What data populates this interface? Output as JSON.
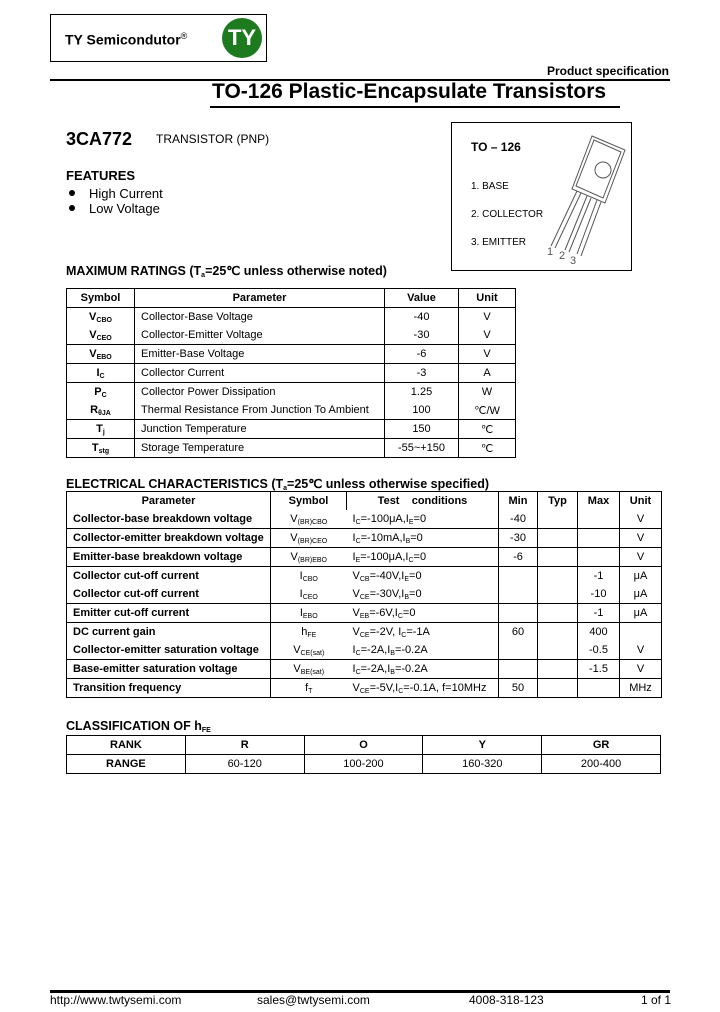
{
  "header": {
    "company": "TY Semicondutor",
    "registered": "®",
    "logo_letters": "TY",
    "logo_color": "#1e7a1e",
    "product_spec": "Product specification",
    "title": "TO-126 Plastic-Encapsulate Transistors"
  },
  "part": {
    "number": "3CA772",
    "type": "TRANSISTOR (PNP)"
  },
  "package": {
    "name": "TO – 126",
    "pins": [
      "1. BASE",
      "2. COLLECTOR",
      "3. EMITTER"
    ],
    "pin_numbers": [
      "1",
      "2",
      "3"
    ]
  },
  "features": {
    "title": "FEATURES",
    "items": [
      "High Current",
      "Low Voltage"
    ]
  },
  "max_ratings": {
    "heading": [
      "MAXIMUM RATINGS (T",
      {
        "sub": "a"
      },
      "=25℃ unless otherwise noted)"
    ],
    "columns": [
      "Symbol",
      "Parameter",
      "Value",
      "Unit"
    ],
    "rows": [
      {
        "symbol": [
          "V",
          {
            "sub": "CBO"
          }
        ],
        "parameter": "Collector-Base Voltage",
        "value": "-40",
        "unit": "V",
        "sep": false
      },
      {
        "symbol": [
          "V",
          {
            "sub": "CEO"
          }
        ],
        "parameter": "Collector-Emitter Voltage",
        "value": "-30",
        "unit": "V",
        "sep": true
      },
      {
        "symbol": [
          "V",
          {
            "sub": "EBO"
          }
        ],
        "parameter": "Emitter-Base Voltage",
        "value": "-6",
        "unit": "V",
        "sep": true
      },
      {
        "symbol": [
          "I",
          {
            "sub": "C"
          }
        ],
        "parameter": "Collector Current",
        "value": "-3",
        "unit": "A",
        "sep": true
      },
      {
        "symbol": [
          "P",
          {
            "sub": "C"
          }
        ],
        "parameter": "Collector Power Dissipation",
        "value": "1.25",
        "unit": "W",
        "sep": false
      },
      {
        "symbol": [
          "R",
          {
            "sub": "θJA"
          }
        ],
        "parameter": "Thermal Resistance From Junction To Ambient",
        "value": "100",
        "unit": "℃/W",
        "sep": true
      },
      {
        "symbol": [
          "T",
          {
            "sub": "j"
          }
        ],
        "parameter": "Junction Temperature",
        "value": "150",
        "unit": "℃",
        "sep": true
      },
      {
        "symbol": [
          "T",
          {
            "sub": "stg"
          }
        ],
        "parameter": "Storage Temperature",
        "value": "-55~+150",
        "unit": "℃",
        "sep": true
      }
    ]
  },
  "electrical": {
    "heading": [
      "ELECTRICAL CHARACTERISTICS (T",
      {
        "sub": "a"
      },
      "=25℃ unless otherwise specified)"
    ],
    "columns": [
      "Parameter",
      "Symbol",
      "Test    conditions",
      "Min",
      "Typ",
      "Max",
      "Unit"
    ],
    "rows": [
      {
        "parameter": "Collector-base breakdown voltage",
        "symbol": [
          "V",
          {
            "sub": "(BR)CBO"
          }
        ],
        "conditions": [
          "I",
          {
            "sub": "C"
          },
          "=-100μA,I",
          {
            "sub": "E"
          },
          "=0"
        ],
        "min": "-40",
        "typ": "",
        "max": "",
        "unit": "V",
        "sep": true
      },
      {
        "parameter": "Collector-emitter breakdown voltage",
        "symbol": [
          "V",
          {
            "sub": "(BR)CEO"
          }
        ],
        "conditions": [
          "I",
          {
            "sub": "C"
          },
          "=-10mA,I",
          {
            "sub": "B"
          },
          "=0"
        ],
        "min": "-30",
        "typ": "",
        "max": "",
        "unit": "V",
        "sep": true
      },
      {
        "parameter": "Emitter-base breakdown voltage",
        "symbol": [
          "V",
          {
            "sub": "(BR)EBO"
          }
        ],
        "conditions": [
          "I",
          {
            "sub": "E"
          },
          "=-100μA,I",
          {
            "sub": "C"
          },
          "=0"
        ],
        "min": "-6",
        "typ": "",
        "max": "",
        "unit": "V",
        "sep": true
      },
      {
        "parameter": "Collector cut-off current",
        "symbol": [
          "I",
          {
            "sub": "CBO"
          }
        ],
        "conditions": [
          "V",
          {
            "sub": "CB"
          },
          "=-40V,I",
          {
            "sub": "E"
          },
          "=0"
        ],
        "min": "",
        "typ": "",
        "max": "-1",
        "unit": "μA",
        "sep": false
      },
      {
        "parameter": "Collector cut-off current",
        "symbol": [
          "I",
          {
            "sub": "CEO"
          }
        ],
        "conditions": [
          "V",
          {
            "sub": "CE"
          },
          "=-30V,I",
          {
            "sub": "B"
          },
          "=0"
        ],
        "min": "",
        "typ": "",
        "max": "-10",
        "unit": "μA",
        "sep": true
      },
      {
        "parameter": "Emitter cut-off current",
        "symbol": [
          "I",
          {
            "sub": "EBO"
          }
        ],
        "conditions": [
          "V",
          {
            "sub": "EB"
          },
          "=-6V,I",
          {
            "sub": "C"
          },
          "=0"
        ],
        "min": "",
        "typ": "",
        "max": "-1",
        "unit": "μA",
        "sep": true
      },
      {
        "parameter": "DC current gain",
        "symbol": [
          "h",
          {
            "sub": "FE"
          }
        ],
        "conditions": [
          "V",
          {
            "sub": "CE"
          },
          "=-2V, I",
          {
            "sub": "C"
          },
          "=-1A"
        ],
        "min": "60",
        "typ": "",
        "max": "400",
        "unit": "",
        "sep": false
      },
      {
        "parameter": "Collector-emitter saturation voltage",
        "symbol": [
          "V",
          {
            "sub": "CE(sat)"
          }
        ],
        "conditions": [
          "I",
          {
            "sub": "C"
          },
          "=-2A,I",
          {
            "sub": "B"
          },
          "=-0.2A"
        ],
        "min": "",
        "typ": "",
        "max": "-0.5",
        "unit": "V",
        "sep": true
      },
      {
        "parameter": "Base-emitter saturation voltage",
        "symbol": [
          "V",
          {
            "sub": "BE(sat)"
          }
        ],
        "conditions": [
          "I",
          {
            "sub": "C"
          },
          "=-2A,I",
          {
            "sub": "B"
          },
          "=-0.2A"
        ],
        "min": "",
        "typ": "",
        "max": "-1.5",
        "unit": "V",
        "sep": true
      },
      {
        "parameter": "Transition frequency",
        "symbol": [
          "f",
          {
            "sub": "T"
          }
        ],
        "conditions": [
          "V",
          {
            "sub": "CE"
          },
          "=-5V,I",
          {
            "sub": "C"
          },
          "=-0.1A, f=10MHz"
        ],
        "min": "50",
        "typ": "",
        "max": "",
        "unit": "MHz",
        "sep": true
      }
    ]
  },
  "classification": {
    "heading": [
      "CLASSIFICATION OF h",
      {
        "sub": "FE"
      }
    ],
    "rank_label": "RANK",
    "range_label": "RANGE",
    "ranks": [
      "R",
      "O",
      "Y",
      "GR"
    ],
    "ranges": [
      "60-120",
      "100-200",
      "160-320",
      "200-400"
    ]
  },
  "footer": {
    "website": "http://www.twtysemi.com",
    "email": "sales@twtysemi.com",
    "phone": "4008-318-123",
    "page": "1 of 1"
  }
}
